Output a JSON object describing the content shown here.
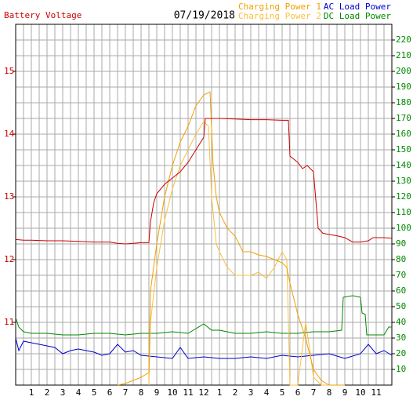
{
  "chart_data": {
    "type": "line",
    "title": "07/19/2018",
    "xlim": [
      0,
      24
    ],
    "xticks": [
      1,
      2,
      3,
      4,
      5,
      6,
      7,
      8,
      9,
      10,
      11,
      12,
      {
        "value": 13,
        "label": "1"
      },
      {
        "value": 14,
        "label": "2"
      },
      {
        "value": 15,
        "label": "3"
      },
      {
        "value": 16,
        "label": "4"
      },
      {
        "value": 17,
        "label": "5"
      },
      {
        "value": 18,
        "label": "6"
      },
      {
        "value": 19,
        "label": "7"
      },
      {
        "value": 20,
        "label": "8"
      },
      {
        "value": 21,
        "label": "9"
      },
      {
        "value": 22,
        "label": "10"
      },
      {
        "value": 23,
        "label": "11"
      }
    ],
    "ylim": [
      10,
      15.75
    ],
    "yticks": [
      11,
      12,
      13,
      14,
      15
    ],
    "y2lim": [
      0,
      230
    ],
    "y2ticks": [
      10,
      20,
      30,
      40,
      50,
      60,
      70,
      80,
      90,
      100,
      110,
      120,
      130,
      140,
      150,
      160,
      170,
      180,
      190,
      200,
      210,
      220
    ],
    "grid": true,
    "series": [
      {
        "name": "Battery Voltage",
        "color": "#cc0000",
        "axis": "y",
        "x": [
          0,
          0.5,
          1,
          2,
          3,
          4,
          5,
          6,
          6.5,
          7,
          7.5,
          8,
          8.5,
          8.6,
          8.8,
          9,
          9.5,
          10,
          10.5,
          11,
          11.5,
          12,
          12.1,
          13,
          14,
          15,
          16,
          17,
          17.4,
          17.5,
          18,
          18.3,
          18.6,
          19,
          19.3,
          19.6,
          20,
          20.5,
          21,
          21.5,
          22,
          22.5,
          22.8,
          23.5,
          24
        ],
        "values": [
          12.32,
          12.31,
          12.31,
          12.3,
          12.3,
          12.29,
          12.28,
          12.28,
          12.26,
          12.25,
          12.26,
          12.27,
          12.27,
          12.6,
          12.9,
          13.05,
          13.2,
          13.3,
          13.4,
          13.55,
          13.75,
          13.95,
          14.25,
          14.25,
          14.24,
          14.23,
          14.23,
          14.22,
          14.22,
          13.65,
          13.55,
          13.45,
          13.5,
          13.4,
          12.5,
          12.42,
          12.4,
          12.38,
          12.35,
          12.28,
          12.28,
          12.3,
          12.35,
          12.35,
          12.34
        ]
      },
      {
        "name": "Charging Power 1",
        "color": "#f0a000",
        "axis": "y2",
        "x": [
          6.5,
          7,
          7.5,
          8,
          8.5,
          8.6,
          9,
          9.5,
          10,
          10.5,
          11,
          11.5,
          12,
          12.4,
          12.6,
          12.8,
          13,
          13.5,
          14,
          14.5,
          15,
          15.5,
          16,
          16.5,
          17,
          17.3,
          17.5,
          18,
          18.5,
          19,
          19.5,
          20,
          21
        ],
        "values": [
          0,
          1,
          3,
          5,
          8,
          60,
          90,
          120,
          140,
          155,
          165,
          178,
          185,
          187,
          140,
          120,
          110,
          100,
          95,
          85,
          85,
          83,
          82,
          80,
          78,
          75,
          65,
          45,
          30,
          10,
          3,
          0,
          0
        ]
      },
      {
        "name": "Charging Power 2",
        "color": "#f8c040",
        "axis": "y2",
        "x": [
          8.5,
          8.6,
          9,
          9.5,
          10,
          10.5,
          11,
          11.5,
          12,
          12.3,
          12.5,
          12.8,
          13,
          13.5,
          14,
          14.5,
          15,
          15.5,
          16,
          16.5,
          17,
          17.3,
          17.5,
          18,
          18.5,
          18.8,
          19,
          19.5,
          20
        ],
        "values": [
          0,
          40,
          75,
          105,
          125,
          140,
          150,
          160,
          168,
          165,
          120,
          90,
          85,
          75,
          70,
          70,
          70,
          72,
          68,
          75,
          85,
          80,
          0,
          0,
          40,
          20,
          5,
          0,
          0
        ]
      },
      {
        "name": "AC Load Power",
        "color": "#0000cc",
        "axis": "y2",
        "x": [
          0,
          0.2,
          0.5,
          1,
          1.5,
          2,
          2.5,
          3,
          3.5,
          4,
          5,
          5.5,
          6,
          6.5,
          7,
          7.5,
          8,
          9,
          10,
          10.5,
          11,
          12,
          13,
          14,
          15,
          16,
          17,
          18,
          19,
          20,
          21,
          22,
          22.5,
          23,
          23.5,
          24
        ],
        "values": [
          30,
          22,
          28,
          27,
          26,
          25,
          24,
          20,
          22,
          23,
          21,
          19,
          20,
          26,
          21,
          22,
          19,
          18,
          17,
          24,
          17,
          18,
          17,
          17,
          18,
          17,
          19,
          18,
          19,
          20,
          17,
          20,
          26,
          20,
          22,
          19
        ]
      },
      {
        "name": "DC Load Power",
        "color": "#008800",
        "axis": "y2",
        "x": [
          0,
          0.2,
          0.5,
          1,
          2,
          3,
          4,
          5,
          6,
          7,
          8,
          9,
          10,
          11,
          11.5,
          12,
          12.5,
          13,
          14,
          15,
          16,
          17,
          18,
          19,
          20,
          20.8,
          20.9,
          21.5,
          22,
          22.1,
          22.3,
          22.4,
          23,
          23.5,
          23.8,
          24
        ],
        "values": [
          43,
          37,
          34,
          33,
          33,
          32,
          32,
          33,
          33,
          32,
          33,
          33,
          34,
          33,
          36,
          39,
          35,
          35,
          33,
          33,
          34,
          33,
          33,
          34,
          34,
          35,
          56,
          57,
          56,
          46,
          45,
          32,
          32,
          32,
          37,
          37
        ]
      }
    ]
  }
}
